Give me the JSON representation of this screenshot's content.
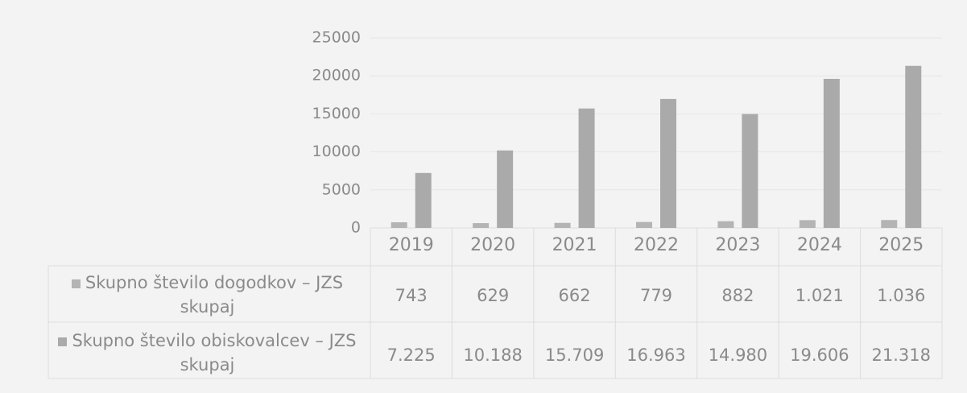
{
  "chart_data": {
    "type": "bar",
    "categories": [
      "2019",
      "2020",
      "2021",
      "2022",
      "2023",
      "2024",
      "2025"
    ],
    "series": [
      {
        "name": "Skupno število dogodkov – JZS skupaj",
        "color": "#b4b4b4",
        "values": [
          743,
          629,
          662,
          779,
          882,
          1021,
          1036
        ],
        "value_labels": [
          "743",
          "629",
          "662",
          "779",
          "882",
          "1.021",
          "1.036"
        ]
      },
      {
        "name": "Skupno število obiskovalcev – JZS skupaj",
        "color": "#aaaaaa",
        "values": [
          7225,
          10188,
          15709,
          16963,
          14980,
          19606,
          21318
        ],
        "value_labels": [
          "7.225",
          "10.188",
          "15.709",
          "16.963",
          "14.980",
          "19.606",
          "21.318"
        ]
      }
    ],
    "ylim": [
      0,
      25000
    ],
    "yticks": [
      0,
      5000,
      10000,
      15000,
      20000,
      25000
    ],
    "grid": true
  }
}
